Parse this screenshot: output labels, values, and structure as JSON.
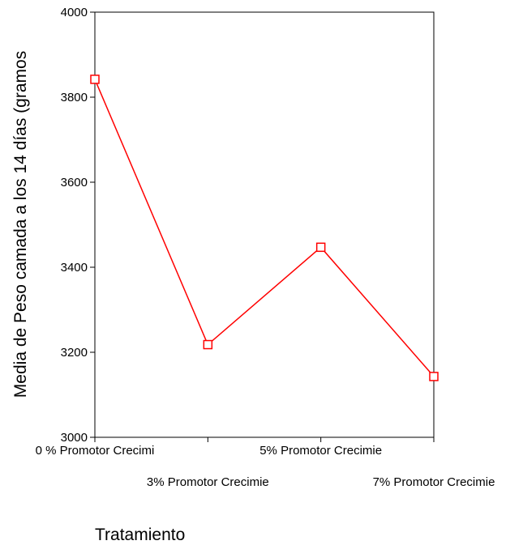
{
  "chart_data": {
    "type": "line",
    "title": "",
    "xlabel": "Tratamiento",
    "ylabel": "Media de Peso camada a los 14 días (gramos",
    "categories": [
      "0 % Promotor Crecimi",
      "3% Promotor Crecimie",
      "5% Promotor Crecimie",
      "7% Promotor Crecimie"
    ],
    "series": [
      {
        "values": [
          3842,
          3218,
          3447,
          3143
        ]
      }
    ],
    "ylim": [
      3000,
      4000
    ],
    "yticks": [
      3000,
      3200,
      3400,
      3600,
      3800,
      4000
    ],
    "grid": false,
    "line_color": "#ff0000",
    "marker": "open-square"
  }
}
